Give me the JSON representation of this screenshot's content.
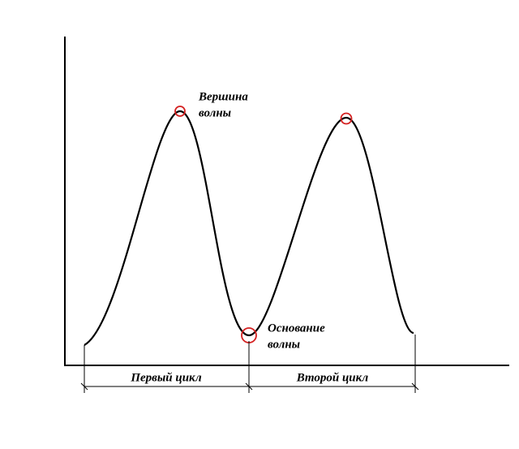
{
  "annotations": [
    {
      "lines": [
        "Вершина",
        "волны"
      ]
    },
    {
      "lines": [
        "Основание",
        "волны"
      ]
    }
  ],
  "cycles": [
    "Первый цикл",
    "Второй цикл"
  ]
}
